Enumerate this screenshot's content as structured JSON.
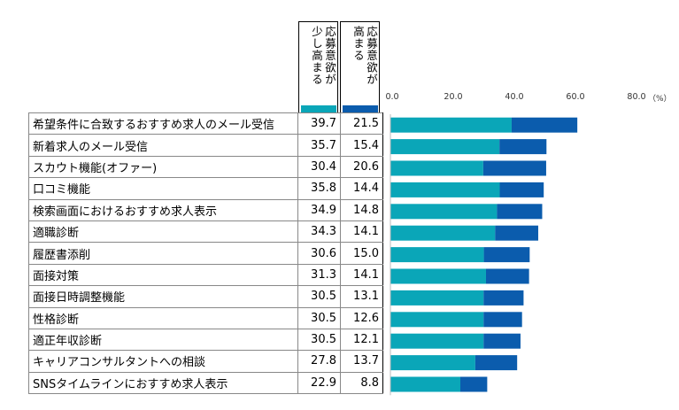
{
  "chart_data": {
    "type": "bar",
    "stacked": true,
    "orientation": "horizontal",
    "categories": [
      "希望条件に合致するおすすめ求人のメール受信",
      "新着求人のメール受信",
      "スカウト機能(オファー)",
      "口コミ機能",
      "検索画面におけるおすすめ求人表示",
      "適職診断",
      "履歴書添削",
      "面接対策",
      "面接日時調整機能",
      "性格診断",
      "適正年収診断",
      "キャリアコンサルタントへの相談",
      "SNSタイムラインにおすすめ求人表示"
    ],
    "series": [
      {
        "name": "応募意欲が少し高まる",
        "color": "#0AA6B8",
        "values": [
          39.7,
          35.7,
          30.4,
          35.8,
          34.9,
          34.3,
          30.6,
          31.3,
          30.5,
          30.5,
          30.5,
          27.8,
          22.9
        ]
      },
      {
        "name": "応募意欲が高まる",
        "color": "#0B5CAD",
        "values": [
          21.5,
          15.4,
          20.6,
          14.4,
          14.8,
          14.1,
          15.0,
          14.1,
          13.1,
          12.6,
          12.1,
          13.7,
          8.8
        ]
      }
    ],
    "value_labels": [
      [
        "39.7",
        "21.5"
      ],
      [
        "35.7",
        "15.4"
      ],
      [
        "30.4",
        "20.6"
      ],
      [
        "35.8",
        "14.4"
      ],
      [
        "34.9",
        "14.8"
      ],
      [
        "34.3",
        "14.1"
      ],
      [
        "30.6",
        "15.0"
      ],
      [
        "31.3",
        "14.1"
      ],
      [
        "30.5",
        "13.1"
      ],
      [
        "30.5",
        "12.6"
      ],
      [
        "30.5",
        "12.1"
      ],
      [
        "27.8",
        "13.7"
      ],
      [
        "22.9",
        "8.8"
      ]
    ],
    "x_ticks": [
      "0.0",
      "20.0",
      "40.0",
      "60.0",
      "80.0"
    ],
    "x_unit": "（%）",
    "xlim": [
      0,
      80
    ],
    "legend_header": {
      "col1": "少し高まる 応募意欲が",
      "col2": "高まる 応募意欲が"
    }
  },
  "header": {
    "col1_lines": [
      "応募意欲が",
      "少し高まる"
    ],
    "col2_lines": [
      "応募意欲が",
      "高まる"
    ]
  }
}
